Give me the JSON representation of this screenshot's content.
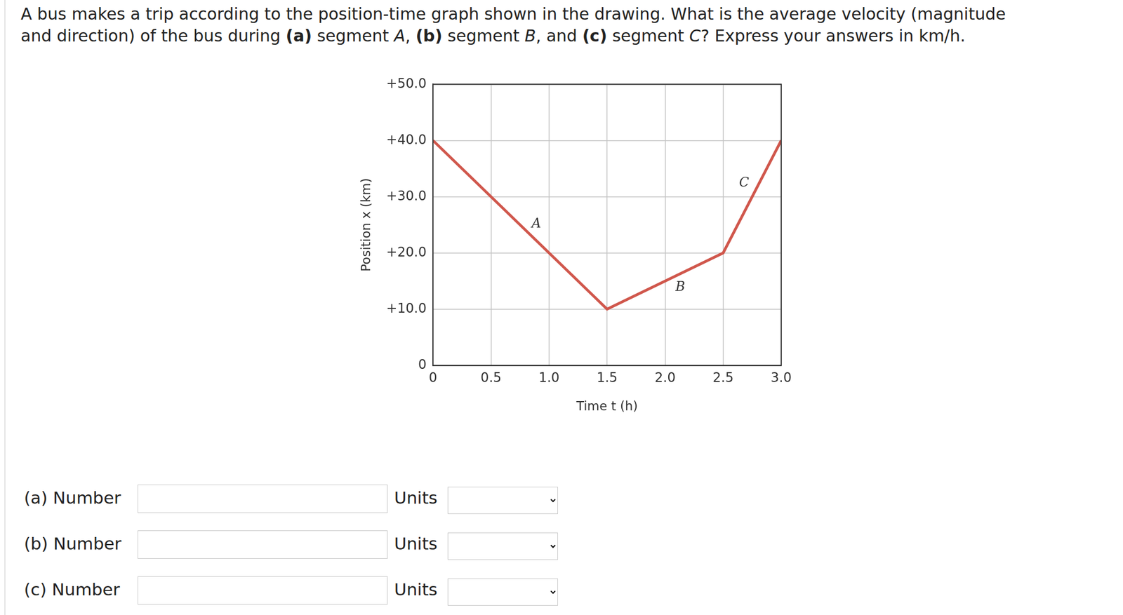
{
  "question": [
    [
      {
        "text": "A bus makes a trip according to the position-time graph shown in the drawing. What is the average velocity (magnitude",
        "style": "normal"
      }
    ],
    [
      {
        "text": "and direction) of the bus during ",
        "style": "normal"
      },
      {
        "text": "(a)",
        "style": "bold"
      },
      {
        "text": " segment ",
        "style": "normal"
      },
      {
        "text": "A",
        "style": "italic"
      },
      {
        "text": ", ",
        "style": "normal"
      },
      {
        "text": "(b)",
        "style": "bold"
      },
      {
        "text": " segment ",
        "style": "normal"
      },
      {
        "text": "B",
        "style": "italic"
      },
      {
        "text": ", and ",
        "style": "normal"
      },
      {
        "text": "(c)",
        "style": "bold"
      },
      {
        "text": " segment ",
        "style": "normal"
      },
      {
        "text": "C",
        "style": "italic"
      },
      {
        "text": "? Express your answers in km/h.",
        "style": "normal"
      }
    ]
  ],
  "chart_data": {
    "type": "line",
    "x_label": "Time t (h)",
    "y_label": "Position x (km)",
    "x": [
      0,
      1.5,
      2.5,
      3.0
    ],
    "values": [
      40,
      10,
      20,
      40
    ],
    "color": "#d0574c",
    "xlim": [
      0,
      3.0
    ],
    "xticks": [
      0,
      0.5,
      {
        "value": 1.0,
        "label": "1.0"
      },
      1.5,
      {
        "value": 2.0,
        "label": "2.0"
      },
      2.5,
      {
        "value": 3.0,
        "label": "3.0"
      }
    ],
    "ylim": [
      0,
      50
    ],
    "yticks": [
      0,
      {
        "value": 10,
        "label": "+10.0"
      },
      {
        "value": 20,
        "label": "+20.0"
      },
      {
        "value": 30,
        "label": "+30.0"
      },
      {
        "value": 40,
        "label": "+40.0"
      },
      {
        "value": 50,
        "label": "+50.0"
      }
    ],
    "grid": true,
    "annotations": [
      {
        "text": "A",
        "x": 0.89,
        "y": 25.1
      },
      {
        "text": "B",
        "x": 2.13,
        "y": 13.9
      },
      {
        "text": "C",
        "x": 2.68,
        "y": 32.4
      }
    ]
  },
  "form": [
    {
      "label": "(a) Number",
      "units_label": "Units"
    },
    {
      "label": "(b) Number",
      "units_label": "Units"
    },
    {
      "label": "(c) Number",
      "units_label": "Units"
    }
  ]
}
